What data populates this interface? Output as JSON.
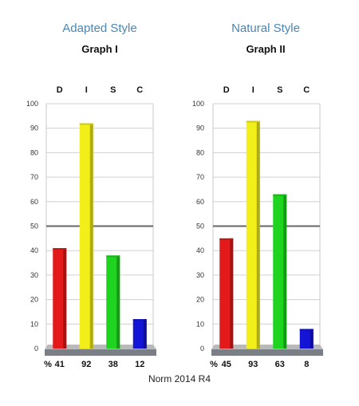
{
  "footer": "Norm 2014 R4",
  "chart_data": [
    {
      "type": "bar",
      "title": "Adapted Style",
      "subtitle": "Graph I",
      "categories": [
        "D",
        "I",
        "S",
        "C"
      ],
      "values": [
        41,
        92,
        38,
        12
      ],
      "value_row_label": "%",
      "value_labels": [
        "41",
        "92",
        "38",
        "12"
      ],
      "ylim": [
        0,
        100
      ],
      "yticks": [
        0,
        10,
        20,
        30,
        40,
        50,
        60,
        70,
        80,
        90,
        100
      ],
      "midline": 50,
      "grid": true,
      "colors": [
        "#e41a1a",
        "#f2ee1a",
        "#1fd41f",
        "#1414d6"
      ]
    },
    {
      "type": "bar",
      "title": "Natural Style",
      "subtitle": "Graph II",
      "categories": [
        "D",
        "I",
        "S",
        "C"
      ],
      "values": [
        45,
        93,
        63,
        8
      ],
      "value_row_label": "%",
      "value_labels": [
        "45",
        "93",
        "63",
        "8"
      ],
      "ylim": [
        0,
        100
      ],
      "yticks": [
        0,
        10,
        20,
        30,
        40,
        50,
        60,
        70,
        80,
        90,
        100
      ],
      "midline": 50,
      "grid": true,
      "colors": [
        "#e41a1a",
        "#f2ee1a",
        "#1fd41f",
        "#1414d6"
      ]
    }
  ]
}
